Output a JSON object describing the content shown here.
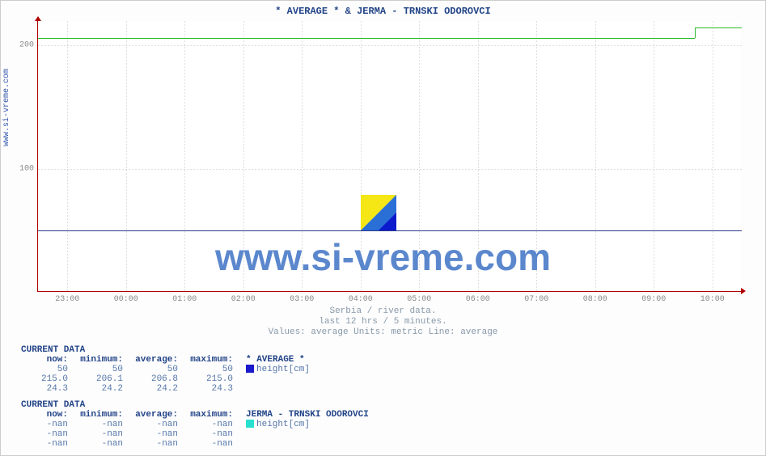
{
  "ylabel": "www.si-vreme.com",
  "title": "* AVERAGE * &  JERMA -  TRNSKI ODOROVCI",
  "watermark": "www.si-vreme.com",
  "chart": {
    "background": "#ffffff",
    "grid_color": "#dddddd",
    "axis_color": "#b00000",
    "ylim": [
      0,
      220
    ],
    "yticks": [
      100,
      200
    ],
    "xticks": [
      "23:00",
      "00:00",
      "01:00",
      "02:00",
      "03:00",
      "04:00",
      "05:00",
      "06:00",
      "07:00",
      "08:00",
      "09:00",
      "10:00"
    ],
    "x_count": 12,
    "series": [
      {
        "name": "average-height",
        "color": "#2a3a8a",
        "y": 50,
        "step_at": null,
        "step_to": null
      },
      {
        "name": "jerma-height",
        "color": "#2bbb2b",
        "y": 206.5,
        "step_at": 0.933,
        "step_to": 215
      }
    ]
  },
  "subcaptions": [
    "Serbia / river data.",
    "last 12 hrs / 5 minutes.",
    "Values: average  Units: metric  Line: average"
  ],
  "blocks": [
    {
      "title": "CURRENT DATA",
      "series_title": "* AVERAGE *",
      "swatch": "#1a1acc",
      "param": "height[cm]",
      "headers": [
        "now:",
        "minimum:",
        "average:",
        "maximum:"
      ],
      "rows": [
        [
          "50",
          "50",
          "50",
          "50"
        ],
        [
          "215.0",
          "206.1",
          "206.8",
          "215.0"
        ],
        [
          "24.3",
          "24.2",
          "24.2",
          "24.3"
        ]
      ]
    },
    {
      "title": "CURRENT DATA",
      "series_title": "JERMA -  TRNSKI ODOROVCI",
      "swatch": "#28e0d0",
      "param": "height[cm]",
      "headers": [
        "now:",
        "minimum:",
        "average:",
        "maximum:"
      ],
      "rows": [
        [
          "-nan",
          "-nan",
          "-nan",
          "-nan"
        ],
        [
          "-nan",
          "-nan",
          "-nan",
          "-nan"
        ],
        [
          "-nan",
          "-nan",
          "-nan",
          "-nan"
        ]
      ]
    }
  ]
}
